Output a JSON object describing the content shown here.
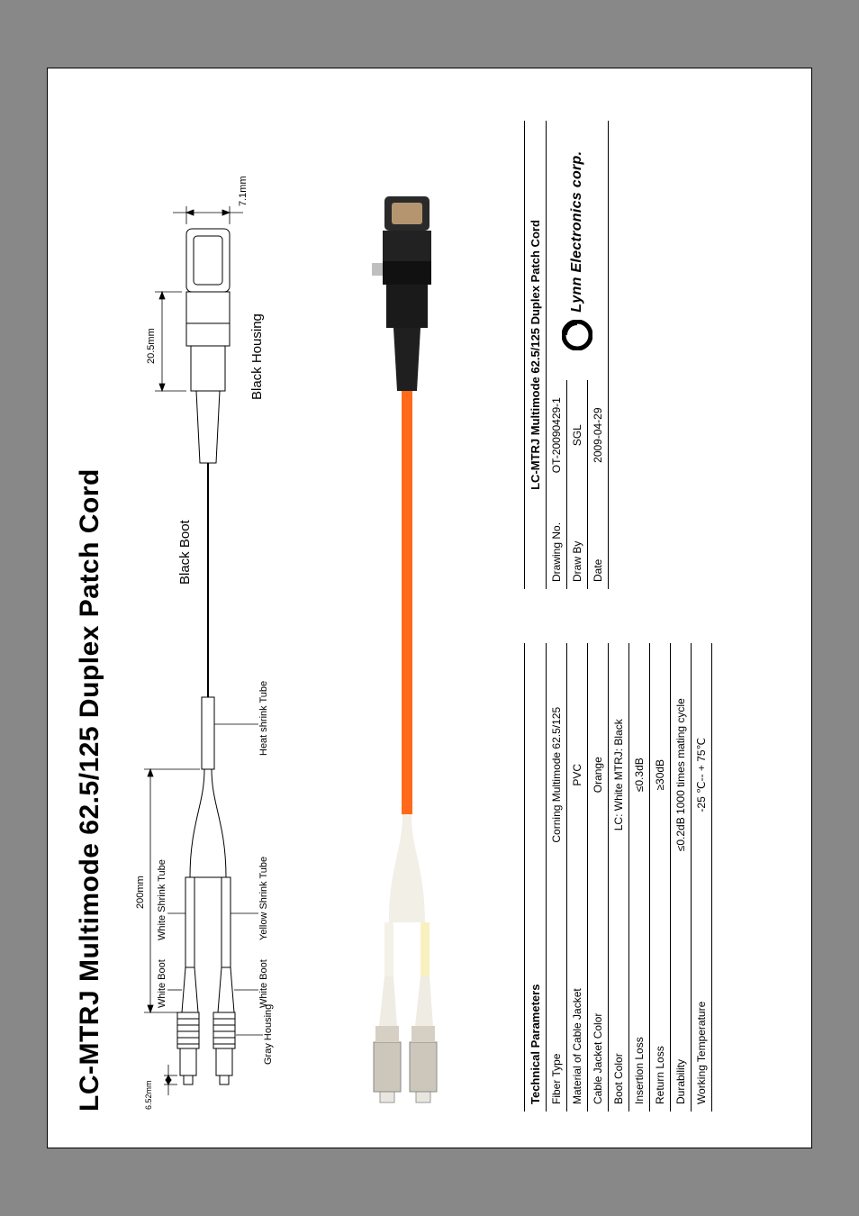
{
  "title": "LC-MTRJ Multimode 62.5/125 Duplex Patch Cord",
  "diagram": {
    "dim_left": "6.52mm",
    "dim_top": "200mm",
    "dim_right_len": "20.5mm",
    "dim_right_h": "7.1mm",
    "gray_housing": "Gray Housing",
    "white_boot": "White Boot",
    "white_shrink": "White Shrink Tube",
    "yellow_shrink": "Yellow Shrink Tube",
    "heat_shrink": "Heat shrink Tube",
    "black_boot": "Black Boot",
    "black_housing": "Black Housing",
    "cable_color": "#ff6a1a",
    "lc_housing_color": "#d9d6d0",
    "shrink_yellow": "#f5e28c",
    "shrink_white": "#f0f0f0",
    "mtrj_color": "#222222"
  },
  "photo": {
    "cable_color": "#ff6a1a",
    "lc_body": "#cdc7bb",
    "lc_ferrule": "#e8e6df",
    "mtrj_body": "#2a2a2a",
    "mtrj_tip": "#b59570"
  },
  "params": {
    "header": "Technical Parameters",
    "rows": [
      {
        "label": "Fiber Type",
        "value": "Corning Multimode 62.5/125"
      },
      {
        "label": "Material of Cable Jacket",
        "value": "PVC"
      },
      {
        "label": "Cable Jacket Color",
        "value": "Orange"
      },
      {
        "label": "Boot Color",
        "value": "LC: White   MTRJ: Black"
      },
      {
        "label": "Insertion Loss",
        "value": "≤0.3dB"
      },
      {
        "label": "Return Loss",
        "value": "≥30dB"
      },
      {
        "label": "Durability",
        "value": "≤0.2dB 1000 times mating cycle"
      },
      {
        "label": "Working Temperature",
        "value": "-25 ℃-- + 75℃"
      }
    ]
  },
  "info": {
    "title": "LC-MTRJ Multimode 62.5/125 Duplex Patch Cord",
    "rows": [
      {
        "label": "Drawing No.",
        "value": "OT-20090429-1"
      },
      {
        "label": "Draw By",
        "value": "SGL"
      },
      {
        "label": "Date",
        "value": "2009-04-29"
      }
    ],
    "company": "Lynn Electronics corp."
  }
}
